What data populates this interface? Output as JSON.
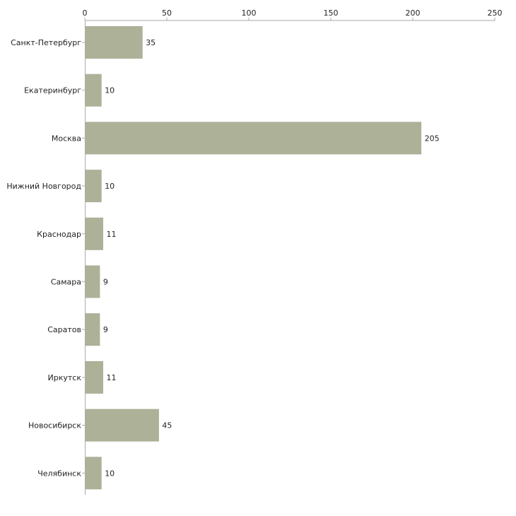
{
  "chart_data": {
    "type": "bar",
    "orientation": "horizontal",
    "categories": [
      "Санкт-Петербург",
      "Екатеринбург",
      "Москва",
      "Нижний Новгород",
      "Краснодар",
      "Самара",
      "Саратов",
      "Иркутск",
      "Новосибирск",
      "Челябинск"
    ],
    "values": [
      35,
      10,
      205,
      10,
      11,
      9,
      9,
      11,
      45,
      10
    ],
    "xlim": [
      0,
      250
    ],
    "xticks": [
      0,
      50,
      100,
      150,
      200,
      250
    ],
    "xaxis_position": "top",
    "grid": false,
    "title": "",
    "xlabel": "",
    "ylabel": "",
    "bar_color": "#acb198",
    "axis_color": "#aaaaaa"
  }
}
